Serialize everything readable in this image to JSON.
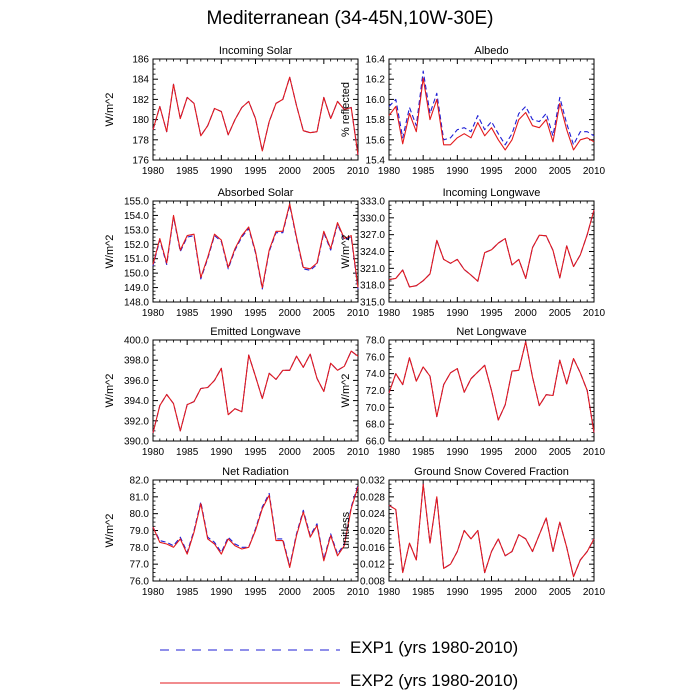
{
  "title": "Mediterranean (34-45N,10W-30E)",
  "legend": [
    {
      "label": "EXP1 (yrs 1980-2010)",
      "color": "#1f1fd6",
      "dash": "dashed"
    },
    {
      "label": "EXP2 (yrs 1980-2010)",
      "color": "#e31a1c",
      "dash": "solid"
    }
  ],
  "chart_data": [
    {
      "type": "line",
      "title": "Incoming Solar",
      "ylabel": "W/m^2",
      "xlim": [
        1980,
        2010
      ],
      "ylim": [
        176,
        186
      ],
      "xticks": [
        1980,
        1985,
        1990,
        1995,
        2000,
        2005,
        2010
      ],
      "yticks": [
        176,
        178,
        180,
        182,
        184,
        186
      ],
      "ytick_labels": [
        "176",
        "178",
        "180",
        "182",
        "184",
        "186"
      ],
      "x": [
        1980,
        1981,
        1982,
        1983,
        1984,
        1985,
        1986,
        1987,
        1988,
        1989,
        1990,
        1991,
        1992,
        1993,
        1994,
        1995,
        1996,
        1997,
        1998,
        1999,
        2000,
        2001,
        2002,
        2003,
        2004,
        2005,
        2006,
        2007,
        2008,
        2009,
        2010
      ],
      "series": [
        {
          "name": "EXP1",
          "values": [
            179.0,
            181.3,
            178.8,
            183.5,
            180.1,
            182.2,
            181.6,
            178.4,
            179.4,
            181.1,
            180.8,
            178.5,
            180.0,
            181.2,
            181.8,
            180.1,
            176.9,
            179.8,
            181.6,
            182.0,
            184.2,
            181.4,
            178.9,
            178.7,
            178.8,
            182.2,
            180.1,
            181.8,
            181.0,
            181.2,
            176.5
          ]
        },
        {
          "name": "EXP2",
          "values": [
            179.0,
            181.3,
            178.8,
            183.5,
            180.1,
            182.2,
            181.6,
            178.4,
            179.4,
            181.1,
            180.8,
            178.5,
            180.0,
            181.2,
            181.8,
            180.1,
            176.9,
            179.8,
            181.6,
            182.0,
            184.2,
            181.4,
            178.9,
            178.7,
            178.8,
            182.2,
            180.1,
            181.8,
            181.0,
            181.2,
            176.5
          ]
        }
      ]
    },
    {
      "type": "line",
      "title": "Albedo",
      "ylabel": "% reflected",
      "xlim": [
        1980,
        2010
      ],
      "ylim": [
        15.4,
        16.4
      ],
      "xticks": [
        1980,
        1985,
        1990,
        1995,
        2000,
        2005,
        2010
      ],
      "yticks": [
        15.4,
        15.6,
        15.8,
        16.0,
        16.2,
        16.4
      ],
      "ytick_labels": [
        "15.4",
        "15.6",
        "15.8",
        "16.0",
        "16.2",
        "16.4"
      ],
      "x": [
        1980,
        1981,
        1982,
        1983,
        1984,
        1985,
        1986,
        1987,
        1988,
        1989,
        1990,
        1991,
        1992,
        1993,
        1994,
        1995,
        1996,
        1997,
        1998,
        1999,
        2000,
        2001,
        2002,
        2003,
        2004,
        2005,
        2006,
        2007,
        2008,
        2009,
        2010
      ],
      "series": [
        {
          "name": "EXP1",
          "values": [
            15.93,
            16.0,
            15.62,
            15.92,
            15.74,
            16.28,
            15.86,
            16.06,
            15.6,
            15.62,
            15.7,
            15.72,
            15.68,
            15.84,
            15.7,
            15.78,
            15.66,
            15.55,
            15.66,
            15.86,
            15.93,
            15.8,
            15.78,
            15.86,
            15.64,
            16.02,
            15.76,
            15.55,
            15.68,
            15.68,
            15.64
          ]
        },
        {
          "name": "EXP2",
          "values": [
            15.84,
            15.93,
            15.56,
            15.86,
            15.68,
            16.21,
            15.8,
            16.0,
            15.55,
            15.55,
            15.62,
            15.66,
            15.62,
            15.77,
            15.64,
            15.72,
            15.6,
            15.5,
            15.6,
            15.8,
            15.87,
            15.74,
            15.72,
            15.8,
            15.58,
            15.96,
            15.7,
            15.5,
            15.6,
            15.62,
            15.58
          ]
        }
      ]
    },
    {
      "type": "line",
      "title": "Absorbed Solar",
      "ylabel": "W/m^2",
      "xlim": [
        1980,
        2010
      ],
      "ylim": [
        148.0,
        155.0
      ],
      "xticks": [
        1980,
        1985,
        1990,
        1995,
        2000,
        2005,
        2010
      ],
      "yticks": [
        148,
        149,
        150,
        151,
        152,
        153,
        154,
        155
      ],
      "ytick_labels": [
        "148.0",
        "149.0",
        "150.0",
        "151.0",
        "152.0",
        "153.0",
        "154.0",
        "155.0"
      ],
      "x": [
        1980,
        1981,
        1982,
        1983,
        1984,
        1985,
        1986,
        1987,
        1988,
        1989,
        1990,
        1991,
        1992,
        1993,
        1994,
        1995,
        1996,
        1997,
        1998,
        1999,
        2000,
        2001,
        2002,
        2003,
        2004,
        2005,
        2006,
        2007,
        2008,
        2009,
        2010
      ],
      "series": [
        {
          "name": "EXP1",
          "values": [
            150.5,
            152.3,
            150.6,
            153.9,
            151.5,
            152.5,
            152.6,
            149.6,
            151.0,
            152.6,
            152.2,
            150.3,
            151.6,
            152.5,
            153.1,
            151.4,
            148.9,
            151.5,
            152.8,
            152.8,
            154.7,
            152.4,
            150.3,
            150.2,
            150.6,
            152.8,
            151.6,
            153.4,
            152.3,
            152.5,
            148.9
          ]
        },
        {
          "name": "EXP2",
          "values": [
            150.6,
            152.4,
            150.7,
            154.0,
            151.6,
            152.6,
            152.7,
            149.7,
            151.1,
            152.7,
            152.3,
            150.4,
            151.7,
            152.6,
            153.2,
            151.5,
            149.0,
            151.6,
            152.9,
            152.9,
            154.8,
            152.5,
            150.4,
            150.3,
            150.7,
            152.9,
            151.7,
            153.5,
            152.4,
            152.6,
            149.0
          ]
        }
      ]
    },
    {
      "type": "line",
      "title": "Incoming Longwave",
      "ylabel": "W/m^2",
      "xlim": [
        1980,
        2010
      ],
      "ylim": [
        315.0,
        333.0
      ],
      "xticks": [
        1980,
        1985,
        1990,
        1995,
        2000,
        2005,
        2010
      ],
      "yticks": [
        315,
        318,
        321,
        324,
        327,
        330,
        333
      ],
      "ytick_labels": [
        "315.0",
        "318.0",
        "321.0",
        "324.0",
        "327.0",
        "330.0",
        "333.0"
      ],
      "x": [
        1980,
        1981,
        1982,
        1983,
        1984,
        1985,
        1986,
        1987,
        1988,
        1989,
        1990,
        1991,
        1992,
        1993,
        1994,
        1995,
        1996,
        1997,
        1998,
        1999,
        2000,
        2001,
        2002,
        2003,
        2004,
        2005,
        2006,
        2007,
        2008,
        2009,
        2010
      ],
      "series": [
        {
          "name": "EXP1",
          "values": [
            319.0,
            319.2,
            320.7,
            317.7,
            317.9,
            318.8,
            320.0,
            326.0,
            322.6,
            321.9,
            322.6,
            320.8,
            319.8,
            318.7,
            323.8,
            324.3,
            325.5,
            326.3,
            321.6,
            322.6,
            319.2,
            324.7,
            326.9,
            326.8,
            324.2,
            319.3,
            325.0,
            321.3,
            323.4,
            327.0,
            331.4
          ]
        },
        {
          "name": "EXP2",
          "values": [
            319.0,
            319.2,
            320.7,
            317.7,
            317.9,
            318.8,
            320.0,
            326.0,
            322.6,
            321.9,
            322.6,
            320.8,
            319.8,
            318.7,
            323.8,
            324.3,
            325.5,
            326.3,
            321.6,
            322.6,
            319.2,
            324.7,
            326.9,
            326.8,
            324.2,
            319.3,
            325.0,
            321.3,
            323.4,
            327.0,
            331.4
          ]
        }
      ]
    },
    {
      "type": "line",
      "title": "Emitted Longwave",
      "ylabel": "W/m^2",
      "xlim": [
        1980,
        2010
      ],
      "ylim": [
        390.0,
        400.0
      ],
      "xticks": [
        1980,
        1985,
        1990,
        1995,
        2000,
        2005,
        2010
      ],
      "yticks": [
        390,
        392,
        394,
        396,
        398,
        400
      ],
      "ytick_labels": [
        "390.0",
        "392.0",
        "394.0",
        "396.0",
        "398.0",
        "400.0"
      ],
      "x": [
        1980,
        1981,
        1982,
        1983,
        1984,
        1985,
        1986,
        1987,
        1988,
        1989,
        1990,
        1991,
        1992,
        1993,
        1994,
        1995,
        1996,
        1997,
        1998,
        1999,
        2000,
        2001,
        2002,
        2003,
        2004,
        2005,
        2006,
        2007,
        2008,
        2009,
        2010
      ],
      "series": [
        {
          "name": "EXP1",
          "values": [
            390.8,
            393.5,
            394.6,
            393.7,
            391.0,
            393.6,
            393.9,
            395.2,
            395.3,
            396.0,
            397.2,
            392.6,
            393.2,
            392.9,
            398.5,
            396.4,
            394.2,
            396.7,
            396.1,
            397.0,
            397.0,
            398.4,
            397.3,
            398.6,
            396.2,
            394.9,
            397.7,
            397.0,
            397.4,
            398.9,
            398.4
          ]
        },
        {
          "name": "EXP2",
          "values": [
            390.8,
            393.5,
            394.6,
            393.7,
            391.0,
            393.6,
            393.9,
            395.2,
            395.3,
            396.0,
            397.2,
            392.6,
            393.2,
            392.9,
            398.5,
            396.4,
            394.2,
            396.7,
            396.1,
            397.0,
            397.0,
            398.4,
            397.3,
            398.6,
            396.2,
            394.9,
            397.7,
            397.0,
            397.4,
            398.9,
            398.4
          ]
        }
      ]
    },
    {
      "type": "line",
      "title": "Net Longwave",
      "ylabel": "W/m^2",
      "xlim": [
        1980,
        2010
      ],
      "ylim": [
        66.0,
        78.0
      ],
      "xticks": [
        1980,
        1985,
        1990,
        1995,
        2000,
        2005,
        2010
      ],
      "yticks": [
        66,
        68,
        70,
        72,
        74,
        76,
        78
      ],
      "ytick_labels": [
        "66.0",
        "68.0",
        "70.0",
        "72.0",
        "74.0",
        "76.0",
        "78.0"
      ],
      "x": [
        1980,
        1981,
        1982,
        1983,
        1984,
        1985,
        1986,
        1987,
        1988,
        1989,
        1990,
        1991,
        1992,
        1993,
        1994,
        1995,
        1996,
        1997,
        1998,
        1999,
        2000,
        2001,
        2002,
        2003,
        2004,
        2005,
        2006,
        2007,
        2008,
        2009,
        2010
      ],
      "series": [
        {
          "name": "EXP1",
          "values": [
            71.7,
            74.0,
            72.7,
            75.9,
            73.1,
            74.8,
            73.7,
            68.9,
            72.7,
            74.1,
            74.6,
            71.8,
            73.4,
            74.2,
            75.0,
            72.0,
            68.5,
            70.3,
            74.3,
            74.4,
            77.8,
            73.6,
            70.2,
            71.5,
            71.4,
            75.6,
            72.8,
            75.8,
            74.1,
            72.0,
            67.0
          ]
        },
        {
          "name": "EXP2",
          "values": [
            71.7,
            74.0,
            72.7,
            75.9,
            73.1,
            74.8,
            73.7,
            68.9,
            72.7,
            74.1,
            74.6,
            71.8,
            73.4,
            74.2,
            75.0,
            72.0,
            68.5,
            70.3,
            74.3,
            74.4,
            77.8,
            73.6,
            70.2,
            71.5,
            71.4,
            75.6,
            72.8,
            75.8,
            74.1,
            72.0,
            67.0
          ]
        }
      ]
    },
    {
      "type": "line",
      "title": "Net Radiation",
      "ylabel": "W/m^2",
      "xlim": [
        1980,
        2010
      ],
      "ylim": [
        76.0,
        82.0
      ],
      "xticks": [
        1980,
        1985,
        1990,
        1995,
        2000,
        2005,
        2010
      ],
      "yticks": [
        76,
        77,
        78,
        79,
        80,
        81,
        82
      ],
      "ytick_labels": [
        "76.0",
        "77.0",
        "78.0",
        "79.0",
        "80.0",
        "81.0",
        "82.0"
      ],
      "x": [
        1980,
        1981,
        1982,
        1983,
        1984,
        1985,
        1986,
        1987,
        1988,
        1989,
        1990,
        1991,
        1992,
        1993,
        1994,
        1995,
        1996,
        1997,
        1998,
        1999,
        2000,
        2001,
        2002,
        2003,
        2004,
        2005,
        2006,
        2007,
        2008,
        2009,
        2010
      ],
      "series": [
        {
          "name": "EXP1",
          "values": [
            79.2,
            78.4,
            78.3,
            78.1,
            78.6,
            77.7,
            79.0,
            80.7,
            78.6,
            78.3,
            77.7,
            78.6,
            78.2,
            78.0,
            78.0,
            79.1,
            80.4,
            81.2,
            78.5,
            78.5,
            76.9,
            78.8,
            80.2,
            78.7,
            79.4,
            77.3,
            78.8,
            77.6,
            78.2,
            80.4,
            81.7
          ]
        },
        {
          "name": "EXP2",
          "values": [
            79.2,
            78.3,
            78.2,
            78.0,
            78.5,
            77.6,
            78.9,
            80.6,
            78.5,
            78.2,
            77.6,
            78.5,
            78.1,
            77.9,
            78.0,
            79.0,
            80.3,
            81.1,
            78.4,
            78.4,
            76.8,
            78.7,
            80.1,
            78.6,
            79.3,
            77.2,
            78.7,
            77.5,
            78.1,
            80.3,
            81.6
          ]
        }
      ]
    },
    {
      "type": "line",
      "title": "Ground Snow Covered Fraction",
      "ylabel": "unitless",
      "xlim": [
        1980,
        2010
      ],
      "ylim": [
        0.008,
        0.032
      ],
      "xticks": [
        1980,
        1985,
        1990,
        1995,
        2000,
        2005,
        2010
      ],
      "yticks": [
        0.008,
        0.012,
        0.016,
        0.02,
        0.024,
        0.028,
        0.032
      ],
      "ytick_labels": [
        "0.008",
        "0.012",
        "0.016",
        "0.020",
        "0.024",
        "0.028",
        "0.032"
      ],
      "x": [
        1980,
        1981,
        1982,
        1983,
        1984,
        1985,
        1986,
        1987,
        1988,
        1989,
        1990,
        1991,
        1992,
        1993,
        1994,
        1995,
        1996,
        1997,
        1998,
        1999,
        2000,
        2001,
        2002,
        2003,
        2004,
        2005,
        2006,
        2007,
        2008,
        2009,
        2010
      ],
      "series": [
        {
          "name": "EXP1",
          "values": [
            0.026,
            0.025,
            0.01,
            0.017,
            0.013,
            0.031,
            0.017,
            0.028,
            0.011,
            0.012,
            0.015,
            0.02,
            0.018,
            0.02,
            0.01,
            0.015,
            0.018,
            0.014,
            0.015,
            0.019,
            0.018,
            0.015,
            0.019,
            0.023,
            0.015,
            0.022,
            0.016,
            0.009,
            0.013,
            0.015,
            0.018
          ]
        },
        {
          "name": "EXP2",
          "values": [
            0.026,
            0.025,
            0.01,
            0.017,
            0.013,
            0.031,
            0.017,
            0.028,
            0.011,
            0.012,
            0.015,
            0.02,
            0.018,
            0.02,
            0.01,
            0.015,
            0.018,
            0.014,
            0.015,
            0.019,
            0.018,
            0.015,
            0.019,
            0.023,
            0.015,
            0.022,
            0.016,
            0.009,
            0.013,
            0.015,
            0.018
          ]
        }
      ]
    }
  ]
}
